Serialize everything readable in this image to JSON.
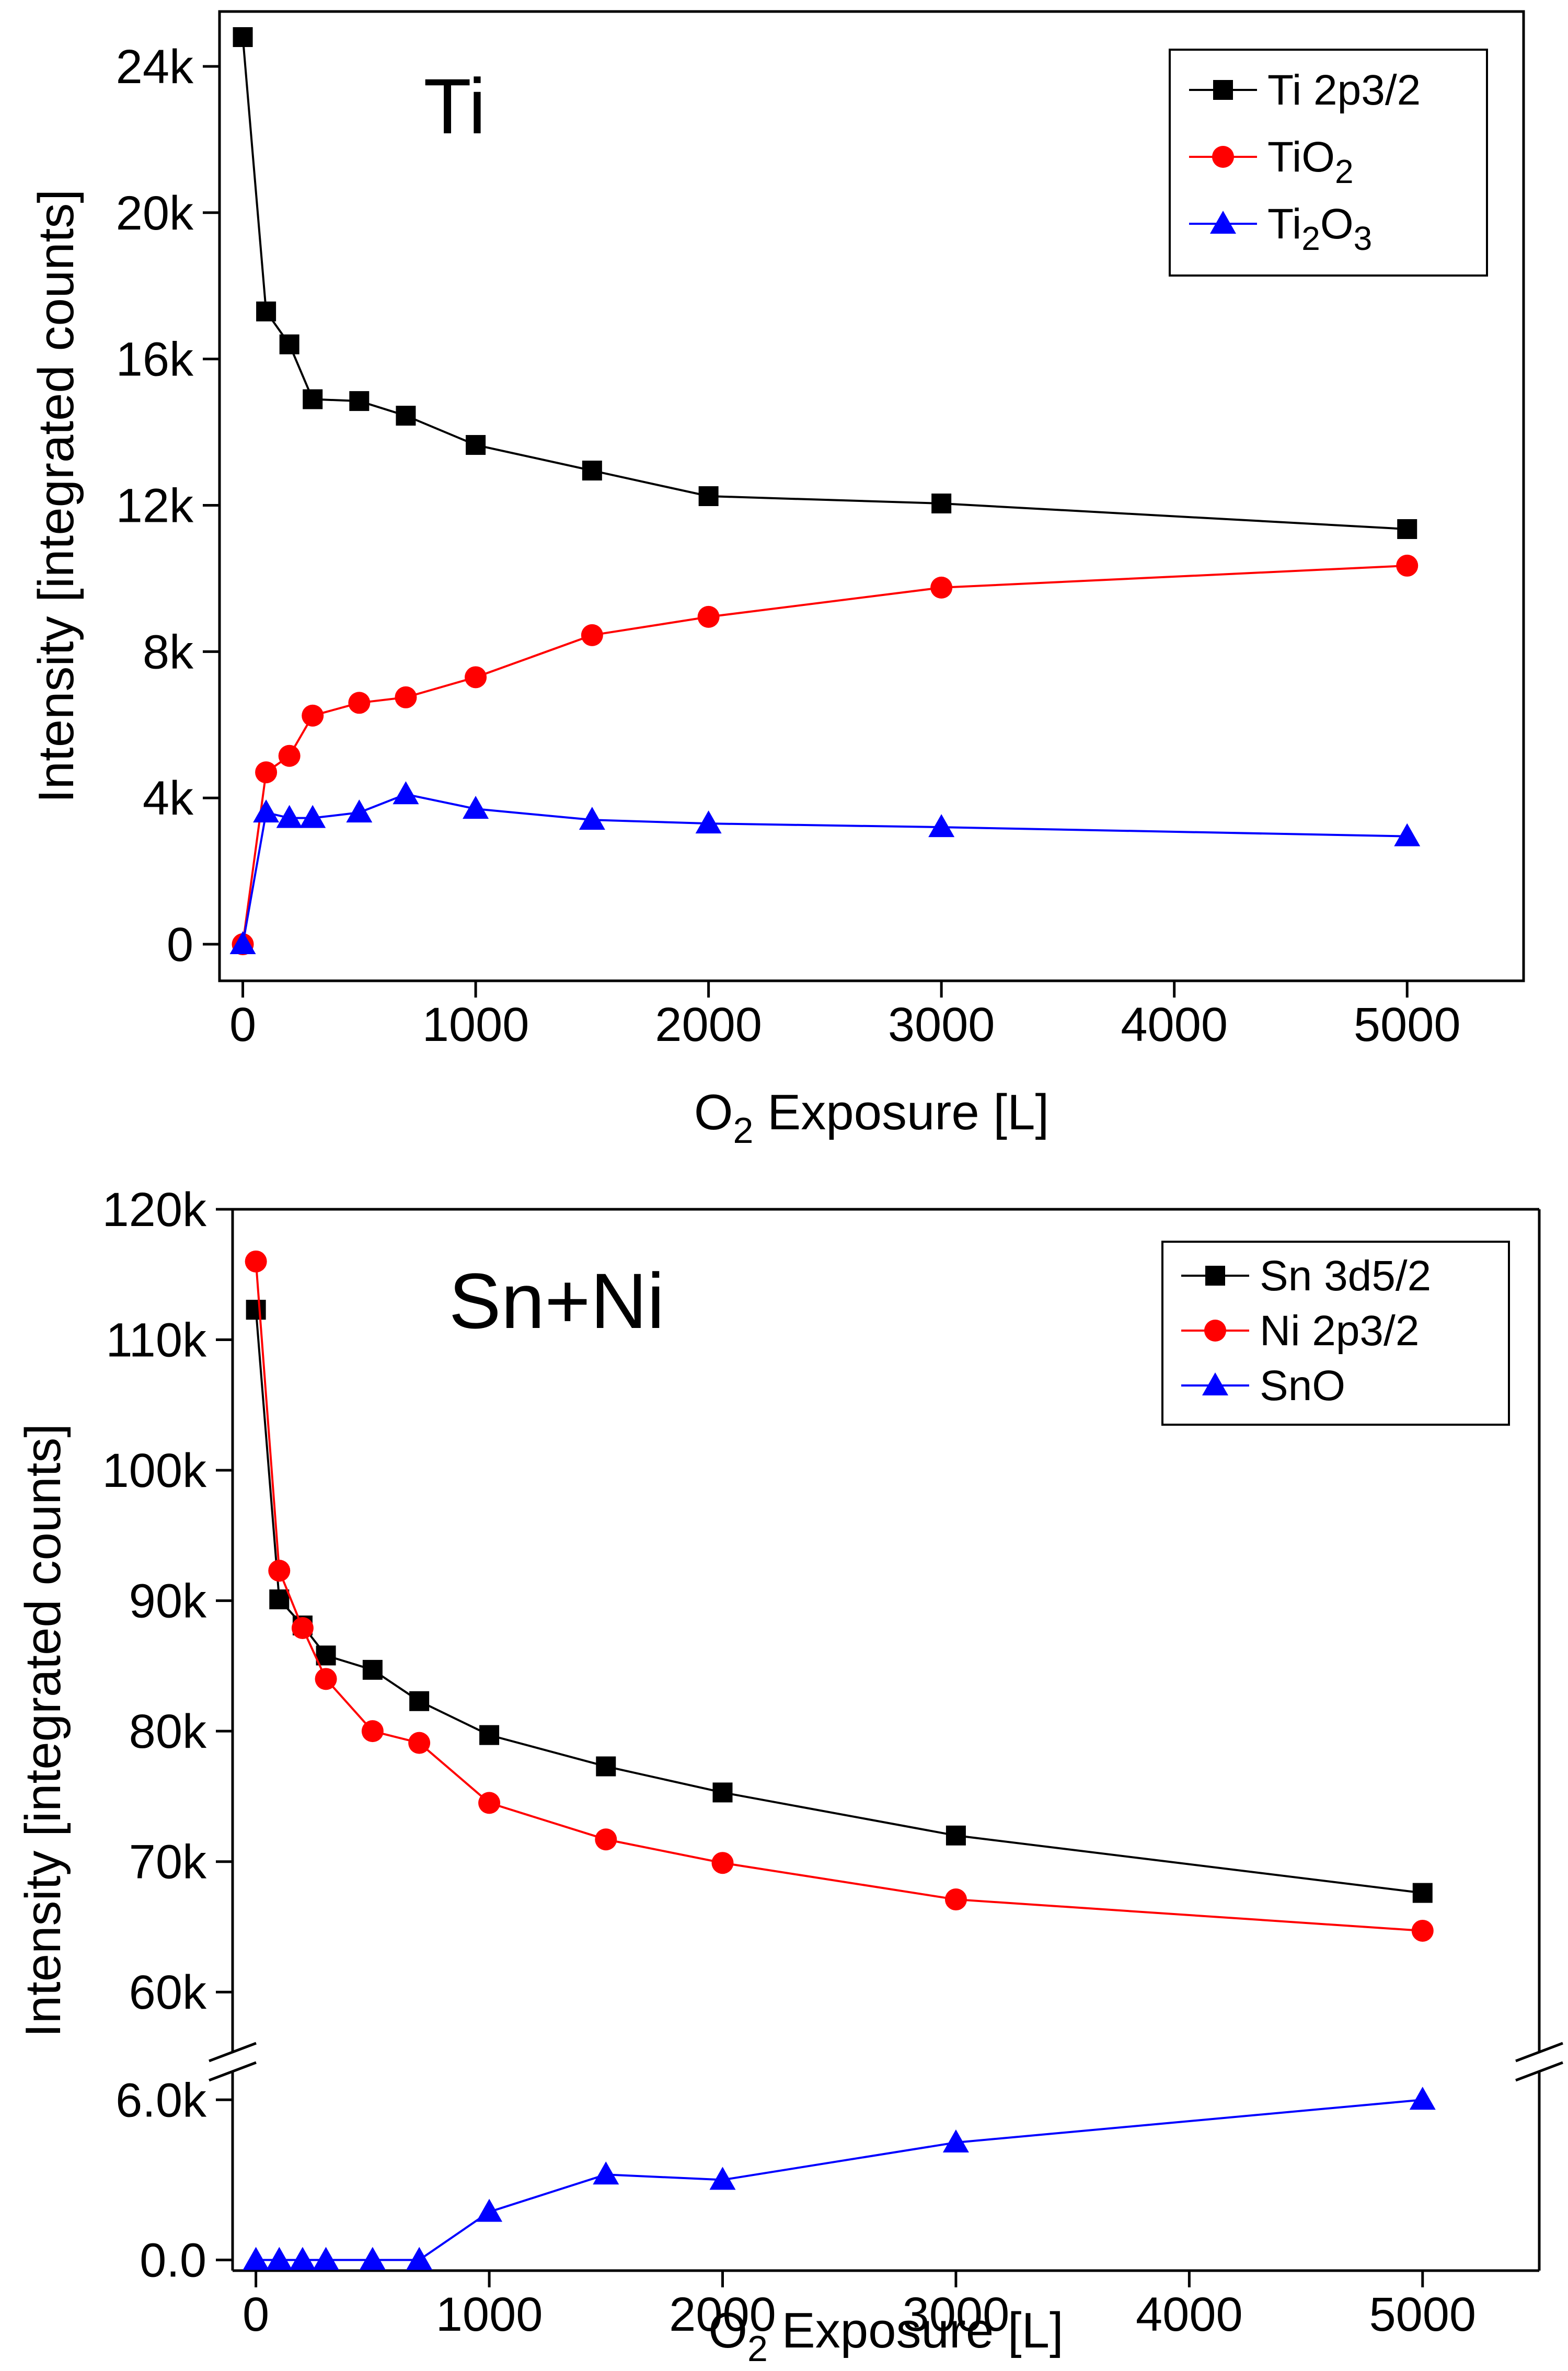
{
  "chart_data": [
    {
      "type": "line",
      "panel_label": "Ti",
      "xlabel": {
        "prefix": "O",
        "sub": "2",
        "suffix": " Exposure [L]"
      },
      "ylabel": "Intensity [integrated counts]",
      "xlim": [
        -100,
        5500
      ],
      "ylim": [
        -1000,
        25500
      ],
      "xticks": [
        0,
        1000,
        2000,
        3000,
        4000,
        5000
      ],
      "xtick_labels": [
        "0",
        "1000",
        "2000",
        "3000",
        "4000",
        "5000"
      ],
      "yticks": [
        0,
        4000,
        8000,
        12000,
        16000,
        20000,
        24000
      ],
      "ytick_labels": [
        "0",
        "4k",
        "8k",
        "12k",
        "16k",
        "20k",
        "24k"
      ],
      "legend_position": "top-right",
      "series": [
        {
          "name": "Ti 2p3/2",
          "legend": [
            {
              "t": "Ti 2p3/2",
              "sub": false
            }
          ],
          "color": "#000000",
          "marker": "square",
          "x": [
            0,
            100,
            200,
            300,
            500,
            700,
            1000,
            1500,
            2000,
            3000,
            5000
          ],
          "values": [
            24800,
            17300,
            16400,
            14900,
            14850,
            14450,
            13650,
            12950,
            12250,
            12050,
            11350
          ]
        },
        {
          "name": "TiO2",
          "legend": [
            {
              "t": "TiO",
              "sub": false
            },
            {
              "t": "2",
              "sub": true
            }
          ],
          "color": "#ff0000",
          "marker": "circle",
          "x": [
            0,
            100,
            200,
            300,
            500,
            700,
            1000,
            1500,
            2000,
            3000,
            5000
          ],
          "values": [
            0,
            4700,
            5150,
            6250,
            6600,
            6750,
            7300,
            8450,
            8950,
            9750,
            10350
          ]
        },
        {
          "name": "Ti2O3",
          "legend": [
            {
              "t": "Ti",
              "sub": false
            },
            {
              "t": "2",
              "sub": true
            },
            {
              "t": "O",
              "sub": false
            },
            {
              "t": "3",
              "sub": true
            }
          ],
          "color": "#0000ff",
          "marker": "triangle",
          "x": [
            0,
            100,
            200,
            300,
            500,
            700,
            1000,
            1500,
            2000,
            3000,
            5000
          ],
          "values": [
            0,
            3600,
            3450,
            3450,
            3600,
            4100,
            3700,
            3400,
            3300,
            3200,
            2950
          ]
        }
      ]
    },
    {
      "type": "line",
      "panel_label": "Sn+Ni",
      "xlabel": {
        "prefix": "O",
        "sub": "2",
        "suffix": " Exposure [L]"
      },
      "ylabel": "Intensity [integrated counts]",
      "xlim": [
        -100,
        5500
      ],
      "broken_y_axis": true,
      "lower_ylim": [
        -400,
        7200
      ],
      "upper_ylim": [
        55000,
        120000
      ],
      "lower_yticks": [
        0,
        6000
      ],
      "lower_ytick_labels": [
        "0.0",
        "6.0k"
      ],
      "upper_yticks": [
        60000,
        70000,
        80000,
        90000,
        100000,
        110000,
        120000
      ],
      "upper_ytick_labels": [
        "60k",
        "70k",
        "80k",
        "90k",
        "100k",
        "110k",
        "120k"
      ],
      "xticks": [
        0,
        1000,
        2000,
        3000,
        4000,
        5000
      ],
      "xtick_labels": [
        "0",
        "1000",
        "2000",
        "3000",
        "4000",
        "5000"
      ],
      "legend_position": "top-right",
      "series": [
        {
          "name": "Sn 3d5/2",
          "legend": [
            {
              "t": "Sn 3d5/2",
              "sub": false
            }
          ],
          "color": "#000000",
          "marker": "square",
          "x": [
            0,
            100,
            200,
            300,
            500,
            700,
            1000,
            1500,
            2000,
            3000,
            5000
          ],
          "values": [
            112300,
            90100,
            88100,
            85800,
            84700,
            82300,
            79700,
            77300,
            75300,
            72000,
            67600
          ]
        },
        {
          "name": "Ni 2p3/2",
          "legend": [
            {
              "t": "Ni 2p3/2",
              "sub": false
            }
          ],
          "color": "#ff0000",
          "marker": "circle",
          "x": [
            0,
            100,
            200,
            300,
            500,
            700,
            1000,
            1500,
            2000,
            3000,
            5000
          ],
          "values": [
            116000,
            92300,
            87900,
            84000,
            80000,
            79100,
            74500,
            71700,
            69900,
            67100,
            64700
          ]
        },
        {
          "name": "SnO",
          "legend": [
            {
              "t": "SnO",
              "sub": false
            }
          ],
          "color": "#0000ff",
          "marker": "triangle",
          "x": [
            0,
            100,
            200,
            300,
            500,
            700,
            1000,
            1500,
            2000,
            3000,
            5000
          ],
          "values": [
            0,
            0,
            0,
            0,
            0,
            0,
            1800,
            3200,
            3000,
            4400,
            6000
          ]
        }
      ]
    }
  ]
}
